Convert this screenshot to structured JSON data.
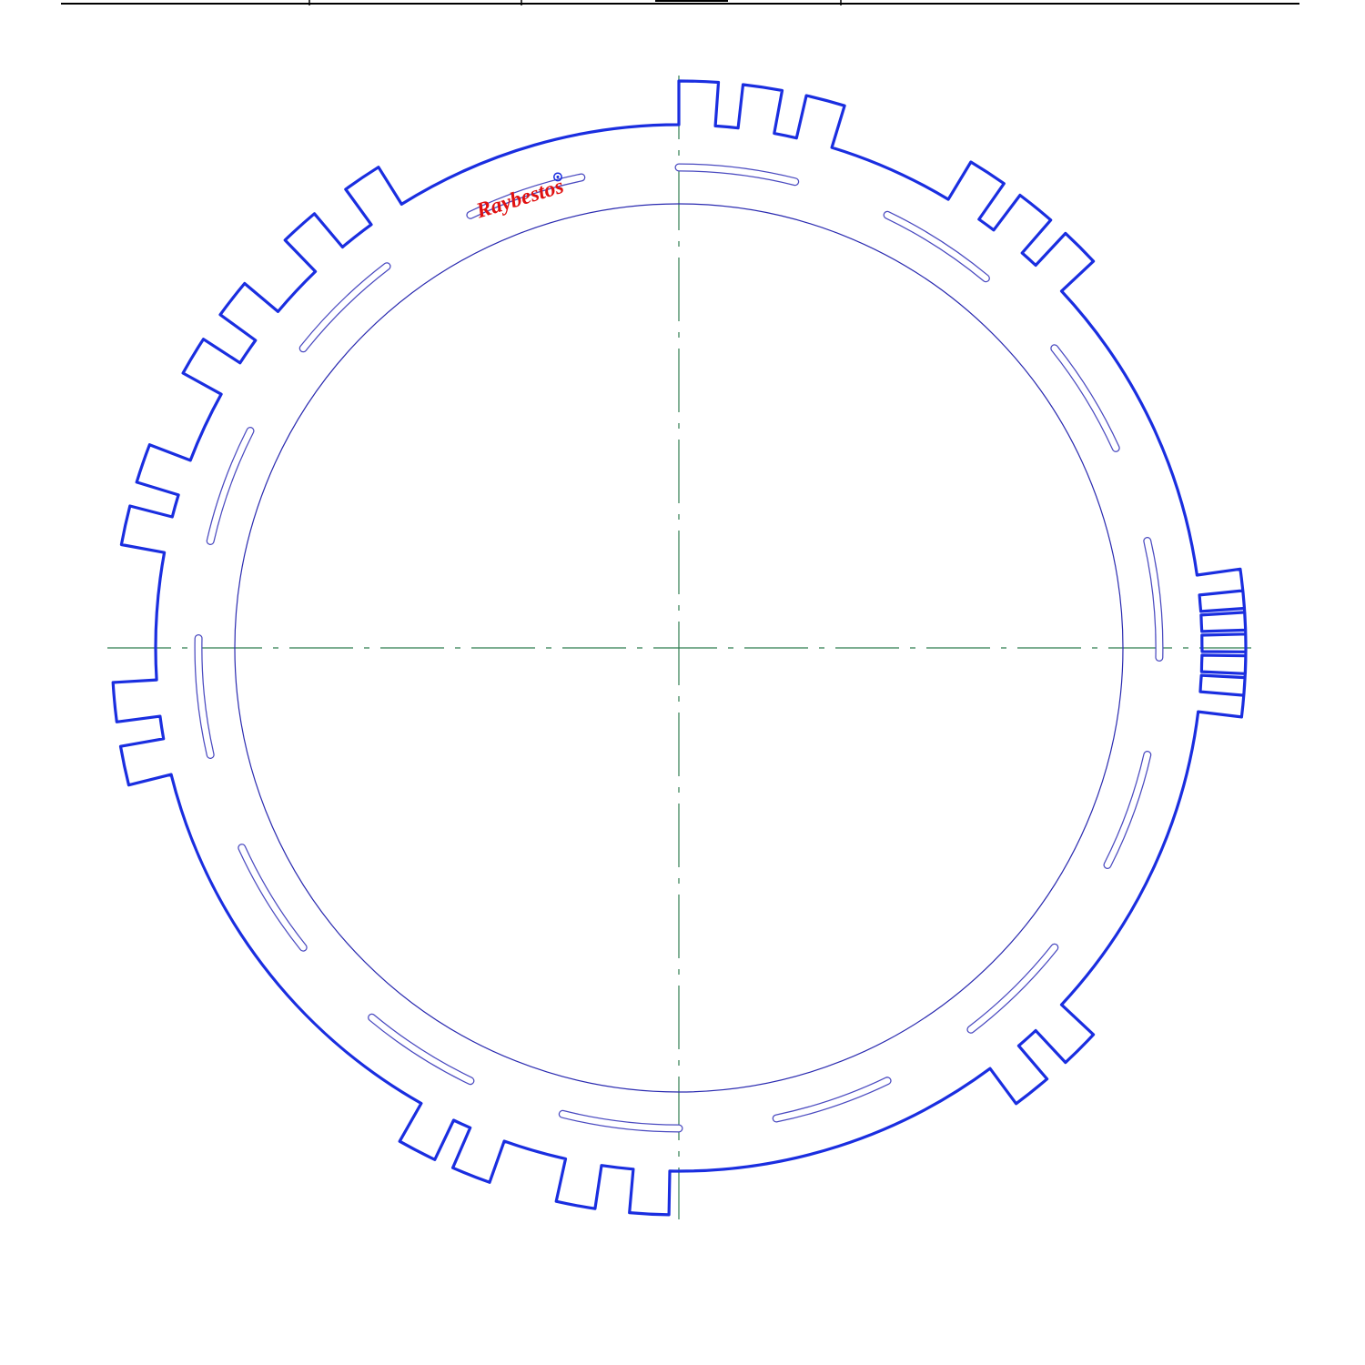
{
  "drawing": {
    "type": "clutch-plate-technical-drawing",
    "logo": {
      "text": "Raybestos"
    },
    "colors": {
      "plate_outline": "#1a2ee0",
      "inner_circle": "#2a2ab0",
      "slot_outline": "#4a4ac0",
      "centerline": "#2e7d4f",
      "logo": "#e01010",
      "logo_mark": "#1a2ee0",
      "title_rule": "#000000"
    },
    "icons": {
      "logo_mark": "registered-mark-icon"
    },
    "teeth_groups": [
      {
        "name": "top",
        "count": 3
      },
      {
        "name": "upper-right",
        "count": 3
      },
      {
        "name": "right",
        "count": 6
      },
      {
        "name": "lower-right",
        "count": 2
      },
      {
        "name": "bottom",
        "count": 4
      },
      {
        "name": "left",
        "count": 2
      },
      {
        "name": "upper-left",
        "count": 6
      }
    ],
    "slot_count": 14
  }
}
